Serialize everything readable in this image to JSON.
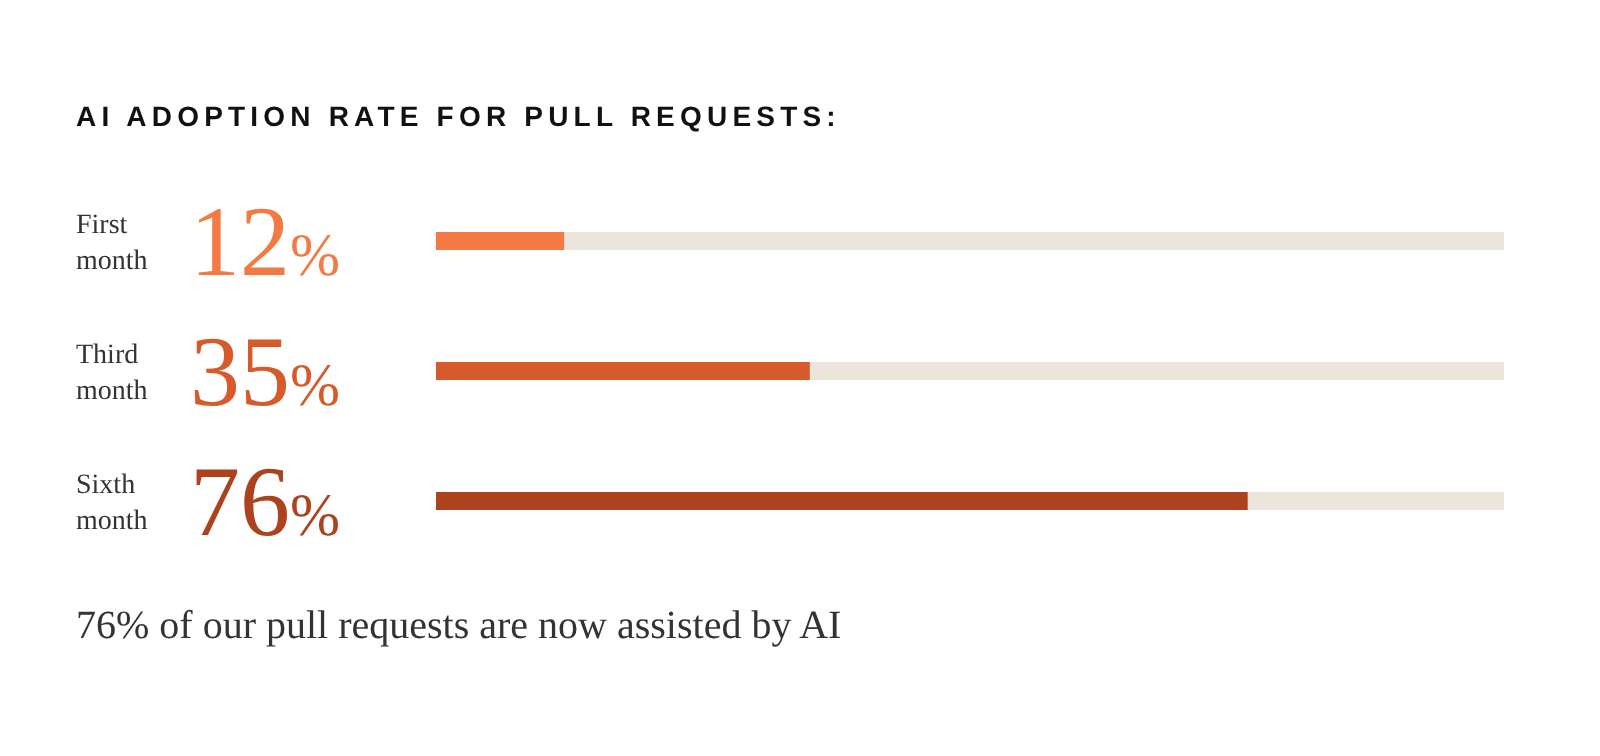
{
  "chart_data": {
    "type": "bar",
    "orientation": "horizontal",
    "title": "AI ADOPTION RATE FOR PULL REQUESTS:",
    "categories": [
      "First month",
      "Third month",
      "Sixth month"
    ],
    "values": [
      12,
      35,
      76
    ],
    "colors": [
      "#f47a44",
      "#d65a2a",
      "#ad421e"
    ],
    "value_labels": [
      "12%",
      "35%",
      "76%"
    ],
    "xlim": [
      0,
      100
    ],
    "tick_labels": false,
    "grid": false,
    "legend": false,
    "annotations": [
      "76% of our pull requests are now assisted by AI"
    ]
  }
}
